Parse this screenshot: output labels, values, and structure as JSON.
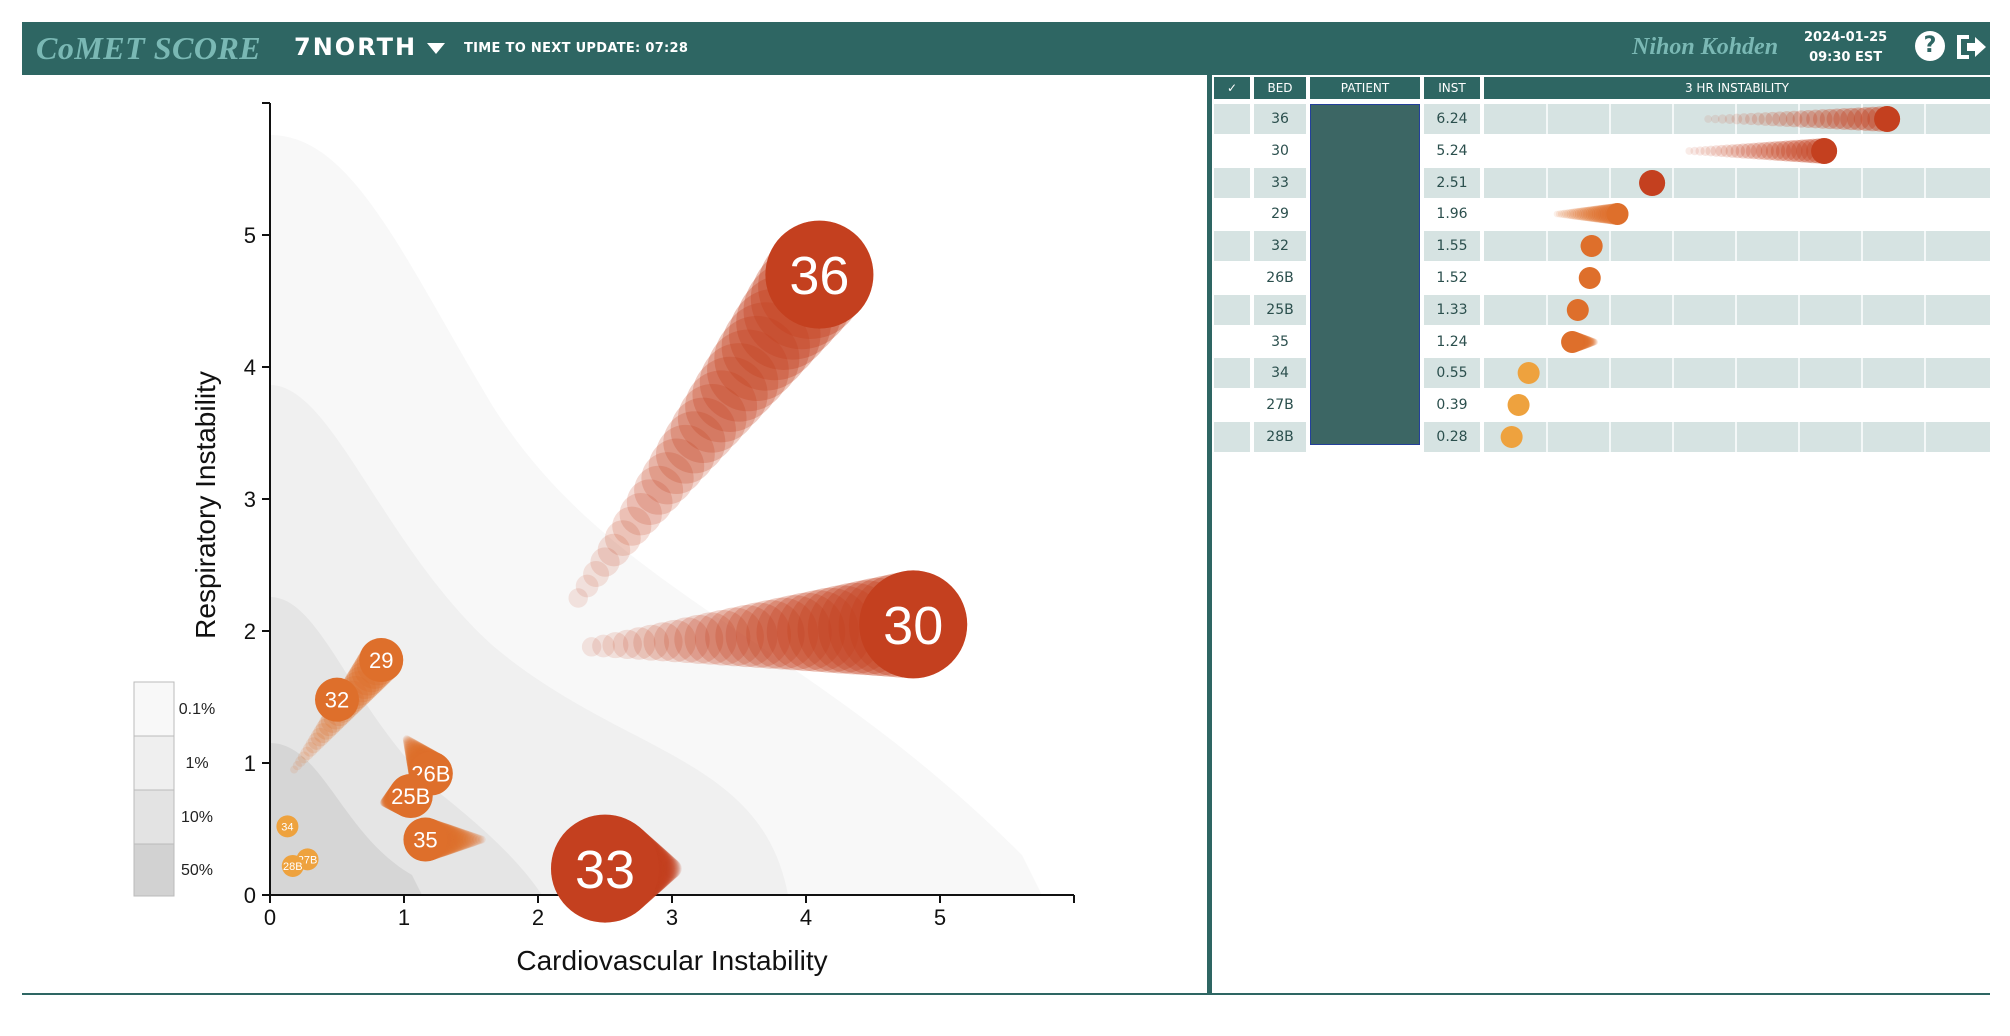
{
  "header": {
    "brand": "CoMET SCORE",
    "unit": "7NORTH",
    "timer": "TIME TO NEXT UPDATE: 07:28",
    "vendor": "Nihon Kohden",
    "date": "2024-01-25",
    "time": "09:30 EST",
    "help_label": "?",
    "icons": [
      "chevron-down-icon",
      "help-icon",
      "logout-icon"
    ]
  },
  "table": {
    "columns": [
      "✓",
      "BED",
      "PATIENT",
      "INST",
      "3 HR INSTABILITY"
    ],
    "rows": [
      {
        "bed": "36",
        "inst": "6.24",
        "start": 3.4,
        "end": 6.24
      },
      {
        "bed": "30",
        "inst": "5.24",
        "start": 3.1,
        "end": 5.24
      },
      {
        "bed": "33",
        "inst": "2.51",
        "start": 2.4,
        "end": 2.51
      },
      {
        "bed": "29",
        "inst": "1.96",
        "start": 1.0,
        "end": 1.96
      },
      {
        "bed": "32",
        "inst": "1.55",
        "start": 1.45,
        "end": 1.55
      },
      {
        "bed": "26B",
        "inst": "1.52",
        "start": 1.52,
        "end": 1.52
      },
      {
        "bed": "25B",
        "inst": "1.33",
        "start": 1.33,
        "end": 1.33
      },
      {
        "bed": "35",
        "inst": "1.24",
        "start": 1.6,
        "end": 1.24
      },
      {
        "bed": "34",
        "inst": "0.55",
        "start": 0.55,
        "end": 0.55
      },
      {
        "bed": "27B",
        "inst": "0.39",
        "start": 0.39,
        "end": 0.39
      },
      {
        "bed": "28B",
        "inst": "0.28",
        "start": 0.28,
        "end": 0.28
      }
    ]
  },
  "legend": [
    "0.1%",
    "1%",
    "10%",
    "50%"
  ],
  "chart_data": {
    "type": "scatter",
    "xlabel": "Cardiovascular Instability",
    "ylabel": "Respiratory Instability",
    "xlim": [
      0,
      6
    ],
    "ylim": [
      0,
      6
    ],
    "xticks": [
      "0",
      "1",
      "2",
      "3",
      "4",
      "5"
    ],
    "yticks": [
      "0",
      "1",
      "2",
      "3",
      "4",
      "5"
    ],
    "legend_placement": "bottom-left",
    "colors": {
      "high": "#c4401f",
      "mid": "#de6f2b",
      "low": "#eea23e"
    },
    "series": [
      {
        "name": "36",
        "x": 4.1,
        "y": 4.7,
        "trail_x": 2.3,
        "trail_y": 2.25
      },
      {
        "name": "30",
        "x": 4.8,
        "y": 2.05,
        "trail_x": 2.4,
        "trail_y": 1.88
      },
      {
        "name": "33",
        "x": 2.5,
        "y": 0.2,
        "trail_x": 3.0,
        "trail_y": 0.2
      },
      {
        "name": "29",
        "x": 0.83,
        "y": 1.78,
        "trail_x": 0.18,
        "trail_y": 0.95
      },
      {
        "name": "32",
        "x": 0.5,
        "y": 1.48,
        "trail_x": 0.5,
        "trail_y": 1.48
      },
      {
        "name": "26B",
        "x": 1.2,
        "y": 0.92,
        "trail_x": 1.02,
        "trail_y": 1.18
      },
      {
        "name": "25B",
        "x": 1.05,
        "y": 0.75,
        "trail_x": 0.85,
        "trail_y": 0.7
      },
      {
        "name": "35",
        "x": 1.16,
        "y": 0.42,
        "trail_x": 1.58,
        "trail_y": 0.42
      },
      {
        "name": "34",
        "x": 0.13,
        "y": 0.52,
        "trail_x": 0.13,
        "trail_y": 0.52
      },
      {
        "name": "27B",
        "x": 0.28,
        "y": 0.27,
        "trail_x": 0.28,
        "trail_y": 0.27
      },
      {
        "name": "28B",
        "x": 0.17,
        "y": 0.22,
        "trail_x": 0.17,
        "trail_y": 0.22
      }
    ]
  }
}
